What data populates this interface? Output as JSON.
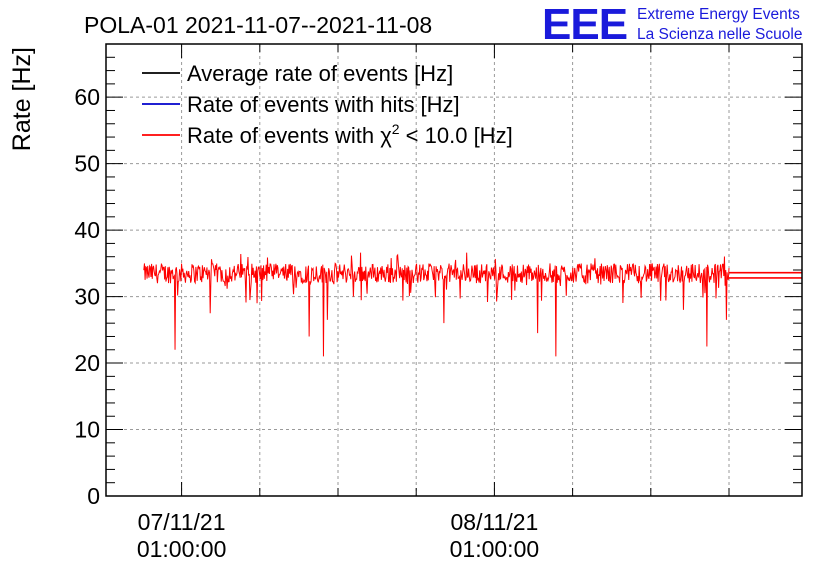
{
  "chart_data": {
    "type": "line",
    "title": "POLA-01 2021-11-07--2021-11-08",
    "ylabel": "Rate [Hz]",
    "xlabel": "",
    "ylim": [
      0,
      68
    ],
    "yticks": [
      0,
      10,
      20,
      30,
      40,
      50,
      60
    ],
    "x_unit": "hours since 2021-11-07 00:00",
    "xlim": [
      -4.8,
      48.6
    ],
    "x_major_ticks": [
      {
        "x": 1,
        "date": "07/11/21",
        "time": "01:00:00"
      },
      {
        "x": 25,
        "date": "08/11/21",
        "time": "01:00:00"
      }
    ],
    "x_minor_ticks": [
      7,
      13,
      19,
      31,
      37,
      43
    ],
    "grid": true,
    "legend_position": "top-left",
    "legend": [
      {
        "label_pre": "Average rate of events [Hz]",
        "sup": "",
        "label_post": "",
        "color": "#000000"
      },
      {
        "label_pre": "Rate of events with hits [Hz]",
        "sup": "",
        "label_post": "",
        "color": "#0000cc"
      },
      {
        "label_pre": "Rate of events with χ",
        "sup": "2",
        "label_post": " < 10.0 [Hz]",
        "color": "#ff0000"
      }
    ],
    "series": [
      {
        "name": "Rate of events with χ2 < 10.0 [Hz]",
        "color": "#ff0000",
        "x_start": -1.9,
        "x_end": 43.0,
        "baseline": 33.5,
        "noise_amplitude": 1.5,
        "dips": [
          {
            "x": 0.5,
            "value": 22
          },
          {
            "x": 3.2,
            "value": 27.5
          },
          {
            "x": 6.8,
            "value": 29
          },
          {
            "x": 10.8,
            "value": 24
          },
          {
            "x": 11.9,
            "value": 21
          },
          {
            "x": 12.2,
            "value": 26.5
          },
          {
            "x": 14.2,
            "value": 30
          },
          {
            "x": 21.1,
            "value": 26
          },
          {
            "x": 26.3,
            "value": 29.5
          },
          {
            "x": 28.3,
            "value": 24.5
          },
          {
            "x": 29.7,
            "value": 21
          },
          {
            "x": 39.5,
            "value": 28
          },
          {
            "x": 41.3,
            "value": 22.5
          },
          {
            "x": 42.8,
            "value": 26.5
          }
        ],
        "tail_value_high": 33.6,
        "tail_value_low": 32.8
      }
    ]
  },
  "logo": {
    "mark": "EEE",
    "line1": "Extreme Energy Events",
    "line2": "La Scienza nelle Scuole",
    "color": "#1a1adb"
  }
}
